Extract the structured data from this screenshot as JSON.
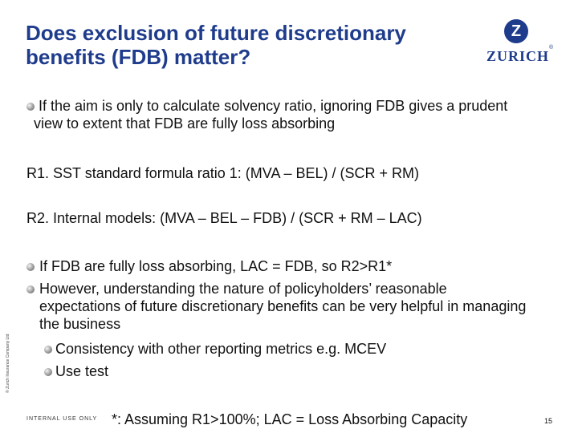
{
  "title": "Does exclusion of future discretionary benefits (FDB) matter?",
  "logo": {
    "letter": "Z",
    "wordmark": "ZURICH",
    "registered": "®"
  },
  "intro_bullet": "If the aim is only to calculate solvency ratio, ignoring FDB gives a prudent view to extent that FDB are fully loss absorbing",
  "ratio_1": "R1. SST standard formula ratio 1: (MVA – BEL) / (SCR + RM)",
  "ratio_2": "R2. Internal models: (MVA – BEL – FDB) / (SCR + RM – LAC)",
  "bullets": [
    "If FDB are fully loss absorbing, LAC = FDB, so R2>R1*",
    "However, understanding the nature of policyholders’ reasonable expectations of future discretionary benefits can be very helpful in managing the business"
  ],
  "sub_bullets": [
    "Consistency with other reporting metrics e.g. MCEV",
    "Use test"
  ],
  "footer": {
    "copyright": "© Zurich Insurance Company Ltd",
    "classification": "INTERNAL USE ONLY",
    "footnote": "*: Assuming R1>100%; LAC = Loss Absorbing Capacity",
    "page_number": "15"
  }
}
